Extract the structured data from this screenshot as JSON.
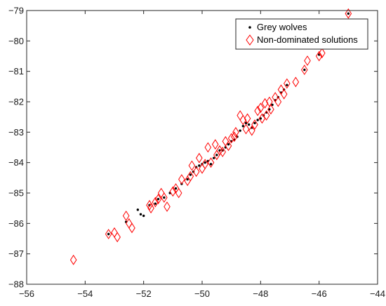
{
  "chart_data": {
    "type": "scatter",
    "title": "",
    "xlabel": "",
    "ylabel": "",
    "xlim": [
      -56,
      -44
    ],
    "ylim": [
      -88,
      -79
    ],
    "x_ticks": [
      -56,
      -54,
      -52,
      -50,
      -48,
      -46,
      -44
    ],
    "y_ticks": [
      -88,
      -87,
      -86,
      -85,
      -84,
      -83,
      -82,
      -81,
      -80,
      -79
    ],
    "grid": false,
    "legend_position": "top-right",
    "series": [
      {
        "name": "Grey wolves",
        "marker": "dot",
        "color": "#000000",
        "points": [
          [
            -53.2,
            -86.35
          ],
          [
            -52.6,
            -85.95
          ],
          [
            -52.2,
            -85.55
          ],
          [
            -52.1,
            -85.7
          ],
          [
            -52.0,
            -85.75
          ],
          [
            -51.8,
            -85.4
          ],
          [
            -51.6,
            -85.35
          ],
          [
            -51.5,
            -85.2
          ],
          [
            -51.3,
            -85.15
          ],
          [
            -51.1,
            -85.0
          ],
          [
            -50.9,
            -84.85
          ],
          [
            -50.7,
            -84.7
          ],
          [
            -50.5,
            -84.55
          ],
          [
            -50.4,
            -84.4
          ],
          [
            -50.3,
            -84.3
          ],
          [
            -50.2,
            -84.15
          ],
          [
            -50.1,
            -84.1
          ],
          [
            -50.0,
            -84.05
          ],
          [
            -49.9,
            -84.0
          ],
          [
            -49.8,
            -83.95
          ],
          [
            -49.7,
            -84.05
          ],
          [
            -49.6,
            -83.85
          ],
          [
            -49.5,
            -83.75
          ],
          [
            -49.4,
            -83.6
          ],
          [
            -49.3,
            -83.6
          ],
          [
            -49.2,
            -83.5
          ],
          [
            -49.1,
            -83.4
          ],
          [
            -49.0,
            -83.3
          ],
          [
            -48.9,
            -83.25
          ],
          [
            -48.8,
            -83.15
          ],
          [
            -48.7,
            -82.95
          ],
          [
            -48.6,
            -82.8
          ],
          [
            -48.5,
            -82.7
          ],
          [
            -48.4,
            -82.75
          ],
          [
            -48.3,
            -82.85
          ],
          [
            -48.2,
            -82.7
          ],
          [
            -48.1,
            -82.6
          ],
          [
            -48.0,
            -82.55
          ],
          [
            -47.9,
            -82.45
          ],
          [
            -47.8,
            -82.35
          ],
          [
            -47.7,
            -82.25
          ],
          [
            -47.6,
            -82.1
          ],
          [
            -47.5,
            -81.95
          ],
          [
            -47.4,
            -81.85
          ],
          [
            -47.3,
            -81.7
          ],
          [
            -47.2,
            -81.6
          ],
          [
            -47.1,
            -81.45
          ],
          [
            -46.5,
            -80.95
          ],
          [
            -46.0,
            -80.45
          ],
          [
            -45.0,
            -79.1
          ]
        ]
      },
      {
        "name": "Non-dominated solutions",
        "marker": "diamond",
        "color": "#ff0000",
        "points": [
          [
            -54.4,
            -87.2
          ],
          [
            -53.2,
            -86.35
          ],
          [
            -53.0,
            -86.3
          ],
          [
            -52.9,
            -86.45
          ],
          [
            -52.6,
            -85.75
          ],
          [
            -52.5,
            -86.0
          ],
          [
            -52.4,
            -86.15
          ],
          [
            -51.8,
            -85.4
          ],
          [
            -51.75,
            -85.5
          ],
          [
            -51.6,
            -85.3
          ],
          [
            -51.5,
            -85.2
          ],
          [
            -51.4,
            -85.0
          ],
          [
            -51.3,
            -85.15
          ],
          [
            -51.2,
            -85.45
          ],
          [
            -51.0,
            -84.95
          ],
          [
            -50.9,
            -84.85
          ],
          [
            -50.8,
            -85.0
          ],
          [
            -50.7,
            -84.55
          ],
          [
            -50.5,
            -84.6
          ],
          [
            -50.4,
            -84.45
          ],
          [
            -50.35,
            -84.1
          ],
          [
            -50.2,
            -84.3
          ],
          [
            -50.1,
            -83.85
          ],
          [
            -50.0,
            -84.2
          ],
          [
            -49.9,
            -84.05
          ],
          [
            -49.8,
            -83.5
          ],
          [
            -49.7,
            -84.0
          ],
          [
            -49.55,
            -83.4
          ],
          [
            -49.5,
            -83.75
          ],
          [
            -49.4,
            -83.6
          ],
          [
            -49.3,
            -83.65
          ],
          [
            -49.2,
            -83.3
          ],
          [
            -49.1,
            -83.45
          ],
          [
            -49.0,
            -83.2
          ],
          [
            -48.9,
            -83.15
          ],
          [
            -48.85,
            -83.0
          ],
          [
            -48.7,
            -82.45
          ],
          [
            -48.6,
            -82.6
          ],
          [
            -48.5,
            -82.9
          ],
          [
            -48.45,
            -82.55
          ],
          [
            -48.3,
            -82.95
          ],
          [
            -48.2,
            -82.75
          ],
          [
            -48.1,
            -82.3
          ],
          [
            -48.0,
            -82.2
          ],
          [
            -47.95,
            -82.55
          ],
          [
            -47.85,
            -82.05
          ],
          [
            -47.8,
            -82.45
          ],
          [
            -47.7,
            -82.0
          ],
          [
            -47.65,
            -82.25
          ],
          [
            -47.5,
            -81.85
          ],
          [
            -47.4,
            -82.0
          ],
          [
            -47.3,
            -81.6
          ],
          [
            -47.2,
            -81.75
          ],
          [
            -47.1,
            -81.4
          ],
          [
            -46.8,
            -81.35
          ],
          [
            -46.5,
            -80.95
          ],
          [
            -46.4,
            -80.65
          ],
          [
            -46.0,
            -80.5
          ],
          [
            -45.9,
            -80.4
          ],
          [
            -45.0,
            -79.1
          ]
        ]
      }
    ]
  }
}
